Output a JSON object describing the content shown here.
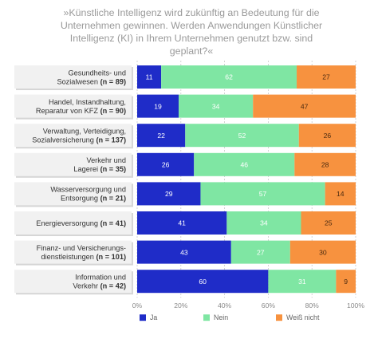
{
  "colors": {
    "ja": "#1f2cc8",
    "nein": "#7fe6a3",
    "weiss_nicht": "#f7923f",
    "label_box": "#f1f1f1",
    "grid": "#c8c8c8"
  },
  "chart_data": {
    "type": "bar",
    "orientation": "horizontal",
    "stacked": true,
    "title": "»Künstliche Intelligenz wird zukünftig an Bedeutung für die Unternehmen gewinnen. Werden Anwendungen Künstlicher Intelligenz (KI) in Ihrem Unternehmen genutzt bzw. sind geplant?«",
    "categories": [
      {
        "lines": [
          "Gesundheits- und",
          "Sozialwesen"
        ],
        "n": "(n = 89)"
      },
      {
        "lines": [
          "Handel, Instandhaltung,",
          "Reparatur von KFZ"
        ],
        "n": "(n = 90)"
      },
      {
        "lines": [
          "Verwaltung, Verteidigung,",
          "Sozialversicherung"
        ],
        "n": "(n = 137)"
      },
      {
        "lines": [
          "Verkehr und",
          "Lagerei"
        ],
        "n": "(n = 35)"
      },
      {
        "lines": [
          "Wasserversorgung und",
          "Entsorgung"
        ],
        "n": "(n = 21)"
      },
      {
        "lines": [
          "Energieversorgung"
        ],
        "n": "(n = 41)"
      },
      {
        "lines": [
          "Finanz- und Versicherungs-",
          "dienstleistungen"
        ],
        "n": "(n = 101)"
      },
      {
        "lines": [
          "Information und",
          "Verkehr"
        ],
        "n": "(n = 42)"
      }
    ],
    "series": [
      {
        "name": "Ja",
        "color_key": "ja",
        "values": [
          11,
          19,
          22,
          26,
          29,
          41,
          43,
          60
        ]
      },
      {
        "name": "Nein",
        "color_key": "nein",
        "values": [
          62,
          34,
          52,
          46,
          57,
          34,
          27,
          31
        ]
      },
      {
        "name": "Weiß nicht",
        "color_key": "weiss_nicht",
        "values": [
          27,
          47,
          26,
          28,
          14,
          25,
          30,
          9
        ]
      }
    ],
    "x_ticks": [
      "0%",
      "20%",
      "40%",
      "60%",
      "80%",
      "100%"
    ],
    "xlim": [
      0,
      100
    ],
    "grid": true,
    "legend": "bottom"
  }
}
